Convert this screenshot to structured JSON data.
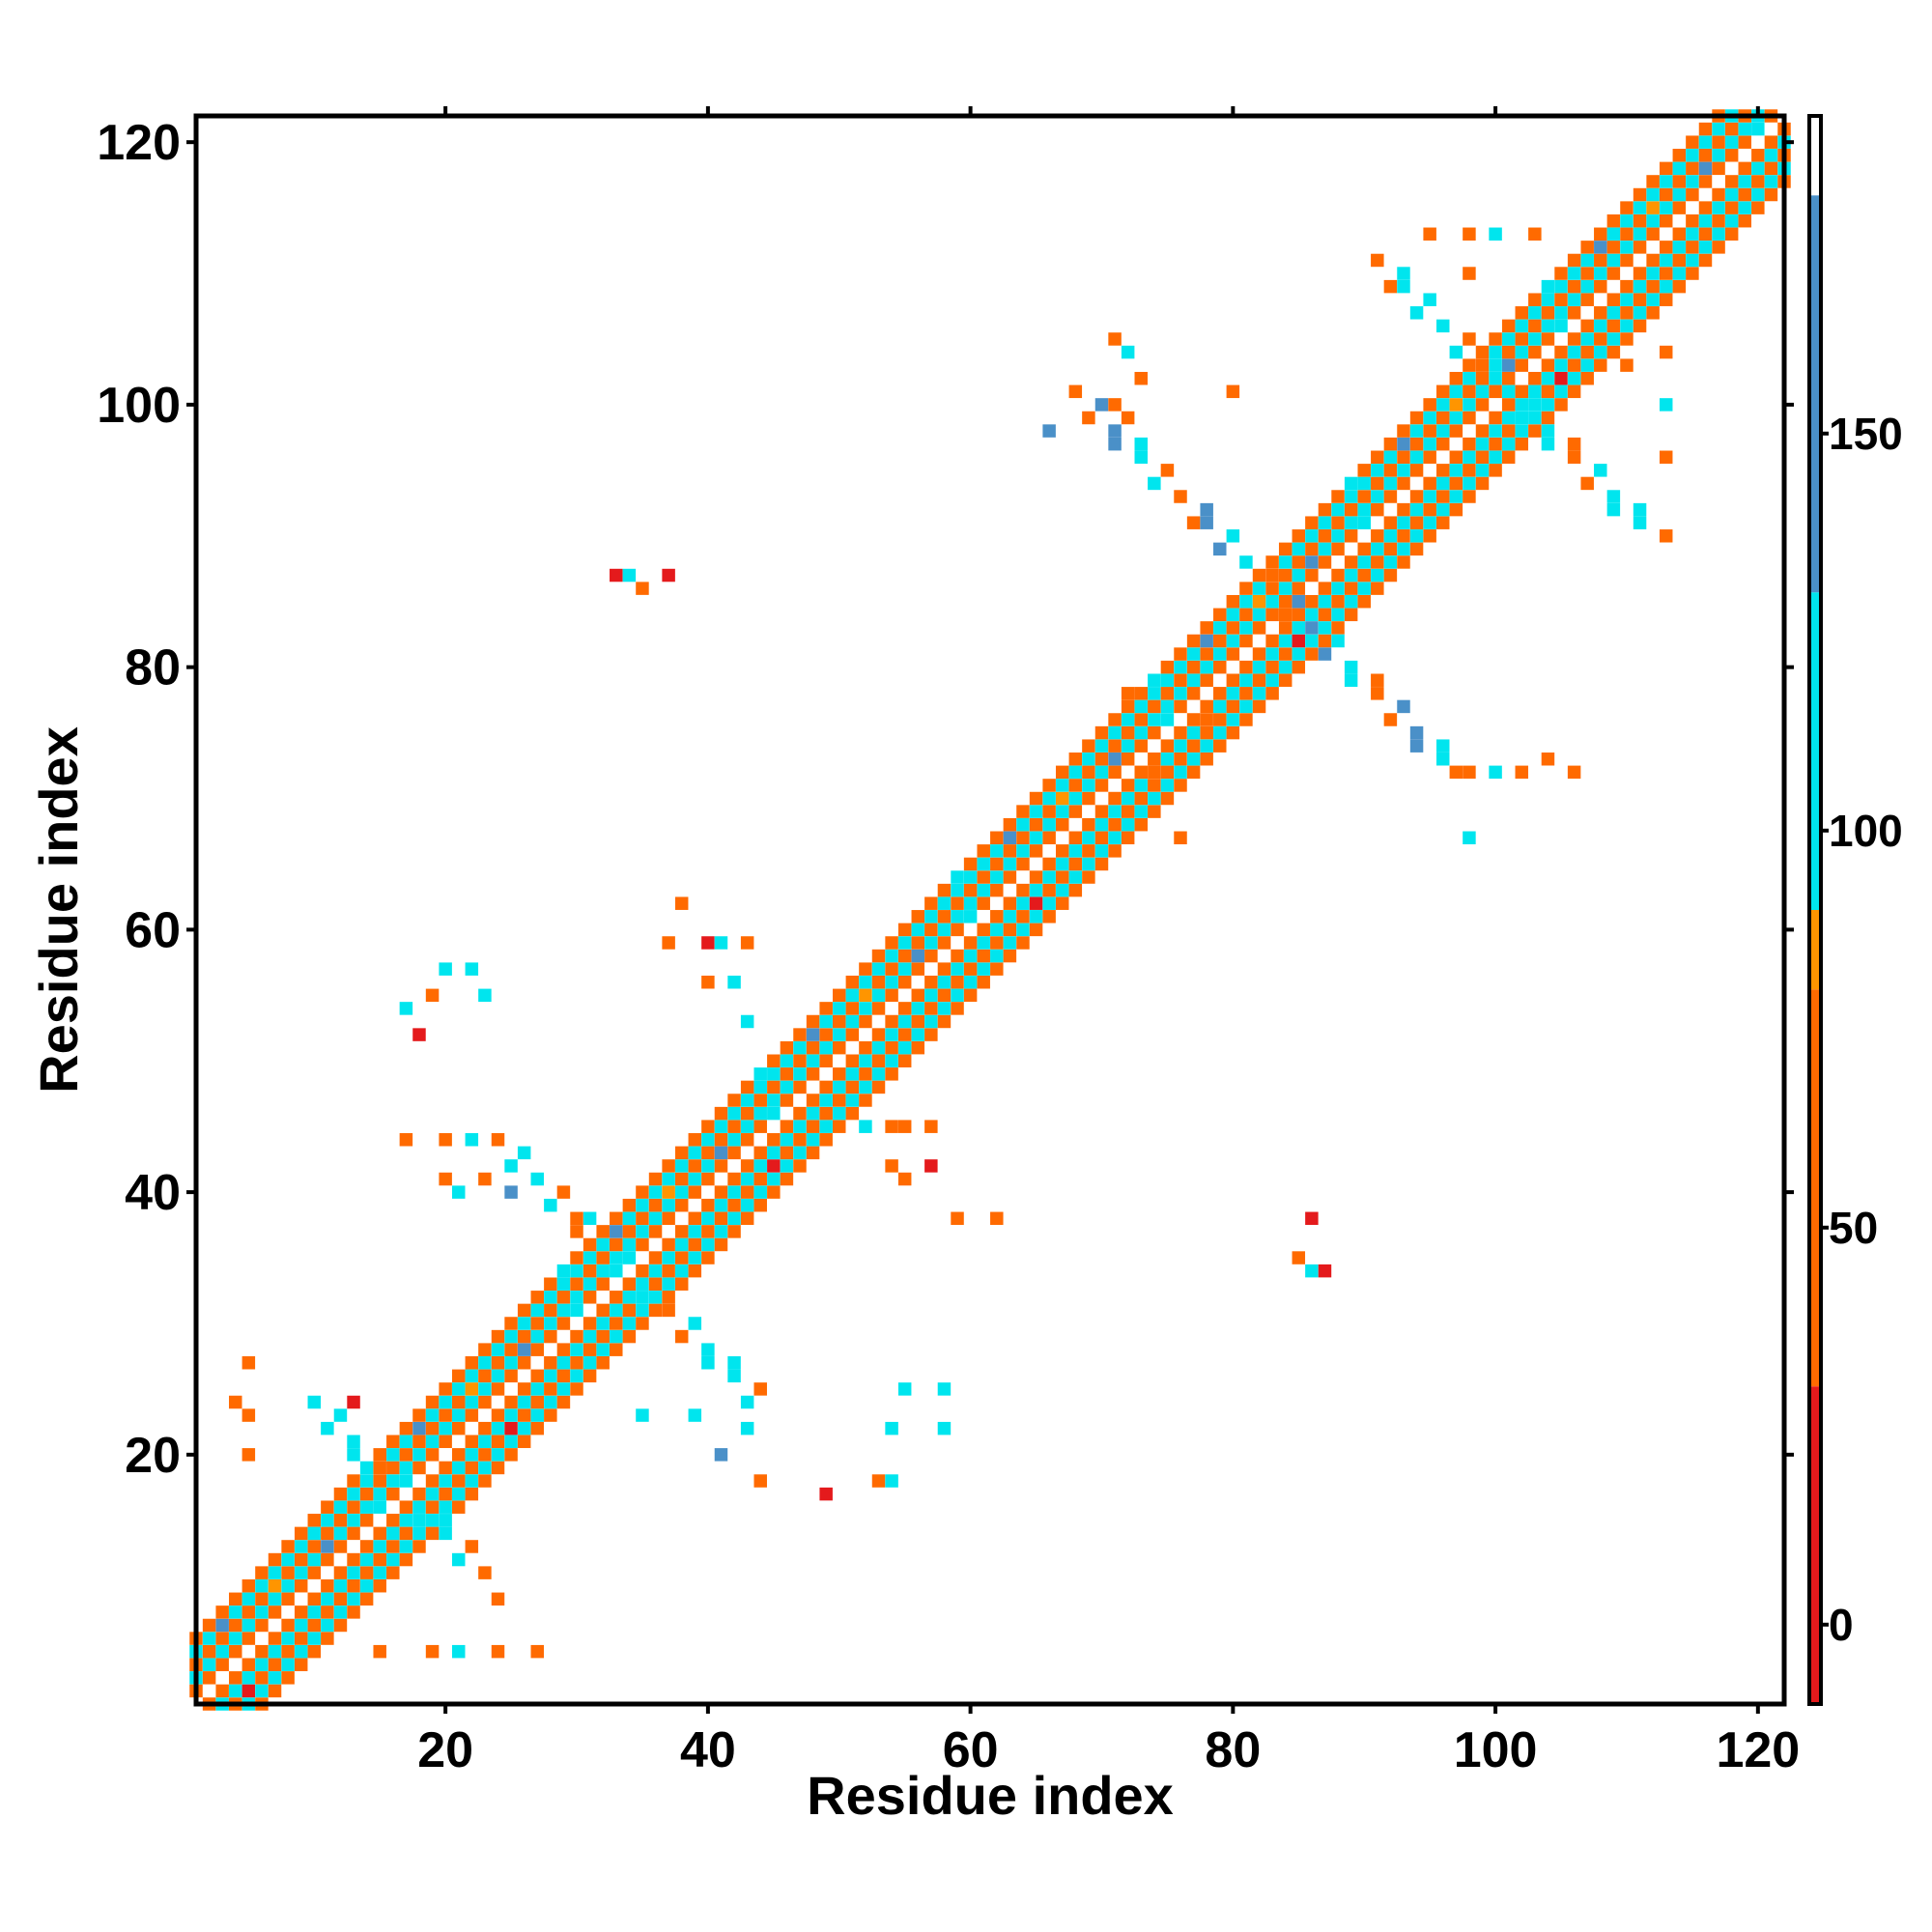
{
  "chart_data": {
    "type": "heatmap",
    "title": "",
    "xlabel": "Residue index",
    "ylabel": "Residue index",
    "xlim": [
      1,
      122
    ],
    "ylim": [
      1,
      122
    ],
    "x_ticks": [
      20,
      40,
      60,
      80,
      100,
      120
    ],
    "y_ticks": [
      20,
      40,
      60,
      80,
      100,
      120
    ],
    "colorbar": {
      "min": -10,
      "max": 190,
      "ticks": [
        0,
        50,
        100,
        150
      ],
      "segments": [
        {
          "from": -10,
          "to": 30,
          "color": "#e41a1c"
        },
        {
          "from": 30,
          "to": 80,
          "color": "#ff6a00"
        },
        {
          "from": 80,
          "to": 90,
          "color": "#ff9500"
        },
        {
          "from": 90,
          "to": 130,
          "color": "#00e5ee"
        },
        {
          "from": 130,
          "to": 180,
          "color": "#4a90c8"
        },
        {
          "from": 180,
          "to": 190,
          "color": "#ffffff"
        }
      ]
    },
    "contact_map": {
      "description_values": "cell values are angle-like contact classes in colorbar units",
      "diagonal_bands": [
        {
          "offset": 1,
          "value": 60
        },
        {
          "offset": 2,
          "value": 115
        },
        {
          "offset": 3,
          "value": 40
        },
        {
          "offset": 4,
          "value": 120
        },
        {
          "offset": 5,
          "value": 55
        }
      ],
      "off_diagonal_blocks": [
        {
          "x": [
            10,
            24
          ],
          "y": [
            4,
            24
          ],
          "value": 120
        },
        {
          "x": [
            24,
            43
          ],
          "y": [
            20,
            44
          ],
          "value": 110
        },
        {
          "x": [
            68,
            99
          ],
          "y": [
            72,
            101
          ],
          "value": 140
        },
        {
          "x": [
            90,
            113
          ],
          "y": [
            90,
            112
          ],
          "value": 120
        }
      ],
      "points": [
        [
          33,
          87,
          20
        ],
        [
          35,
          86,
          50
        ],
        [
          37,
          87,
          20
        ],
        [
          34,
          87,
          115
        ],
        [
          17,
          54,
          100
        ],
        [
          18,
          52,
          20
        ],
        [
          19,
          55,
          50
        ],
        [
          20,
          57,
          100
        ],
        [
          22,
          57,
          100
        ],
        [
          23,
          55,
          100
        ],
        [
          37,
          59,
          60
        ],
        [
          38,
          62,
          60
        ],
        [
          40,
          59,
          20
        ],
        [
          41,
          59,
          100
        ],
        [
          43,
          59,
          50
        ],
        [
          40,
          56,
          60
        ],
        [
          42,
          56,
          100
        ],
        [
          43,
          53,
          100
        ],
        [
          17,
          44,
          50
        ],
        [
          20,
          44,
          60
        ],
        [
          22,
          44,
          100
        ],
        [
          24,
          44,
          50
        ],
        [
          20,
          41,
          60
        ],
        [
          23,
          41,
          60
        ],
        [
          25,
          40,
          140
        ],
        [
          21,
          40,
          100
        ],
        [
          52,
          45,
          100
        ],
        [
          54,
          45,
          60
        ],
        [
          55,
          45,
          50
        ],
        [
          57,
          45,
          60
        ],
        [
          54,
          42,
          50
        ],
        [
          57,
          42,
          20
        ],
        [
          55,
          41,
          60
        ],
        [
          59,
          38,
          60
        ],
        [
          62,
          38,
          60
        ],
        [
          86,
          38,
          20
        ],
        [
          85,
          35,
          60
        ],
        [
          86,
          34,
          100
        ],
        [
          87,
          34,
          20
        ],
        [
          49,
          17,
          20
        ],
        [
          53,
          18,
          50
        ],
        [
          54,
          18,
          100
        ],
        [
          54,
          22,
          100
        ],
        [
          55,
          25,
          100
        ],
        [
          58,
          25,
          100
        ],
        [
          58,
          22,
          100
        ],
        [
          35,
          23,
          100
        ],
        [
          39,
          23,
          100
        ],
        [
          41,
          20,
          140
        ],
        [
          44,
          25,
          60
        ],
        [
          43,
          22,
          100
        ],
        [
          44,
          18,
          50
        ],
        [
          5,
          27,
          60
        ],
        [
          4,
          24,
          60
        ],
        [
          5,
          23,
          50
        ],
        [
          5,
          20,
          60
        ],
        [
          13,
          24,
          20
        ],
        [
          15,
          5,
          50
        ],
        [
          19,
          5,
          60
        ],
        [
          21,
          5,
          100
        ],
        [
          24,
          5,
          60
        ],
        [
          27,
          5,
          60
        ],
        [
          71,
          105,
          60
        ],
        [
          72,
          104,
          100
        ],
        [
          73,
          102,
          60
        ],
        [
          71,
          100,
          60
        ],
        [
          72,
          99,
          50
        ],
        [
          66,
          98,
          140
        ],
        [
          80,
          101,
          60
        ],
        [
          72,
          78,
          60
        ],
        [
          74,
          76,
          100
        ],
        [
          75,
          74,
          60
        ],
        [
          78,
          76,
          60
        ],
        [
          74,
          72,
          60
        ],
        [
          75,
          71,
          100
        ],
        [
          76,
          67,
          60
        ],
        [
          98,
          67,
          100
        ],
        [
          97,
          72,
          60
        ],
        [
          100,
          72,
          100
        ],
        [
          102,
          72,
          60
        ],
        [
          104,
          73,
          60
        ],
        [
          106,
          72,
          60
        ],
        [
          95,
          113,
          50
        ],
        [
          98,
          113,
          50
        ],
        [
          100,
          113,
          100
        ],
        [
          103,
          113,
          50
        ],
        [
          98,
          110,
          50
        ],
        [
          110,
          103,
          50
        ],
        [
          113,
          104,
          50
        ],
        [
          113,
          100,
          100
        ],
        [
          113,
          96,
          60
        ]
      ]
    }
  }
}
